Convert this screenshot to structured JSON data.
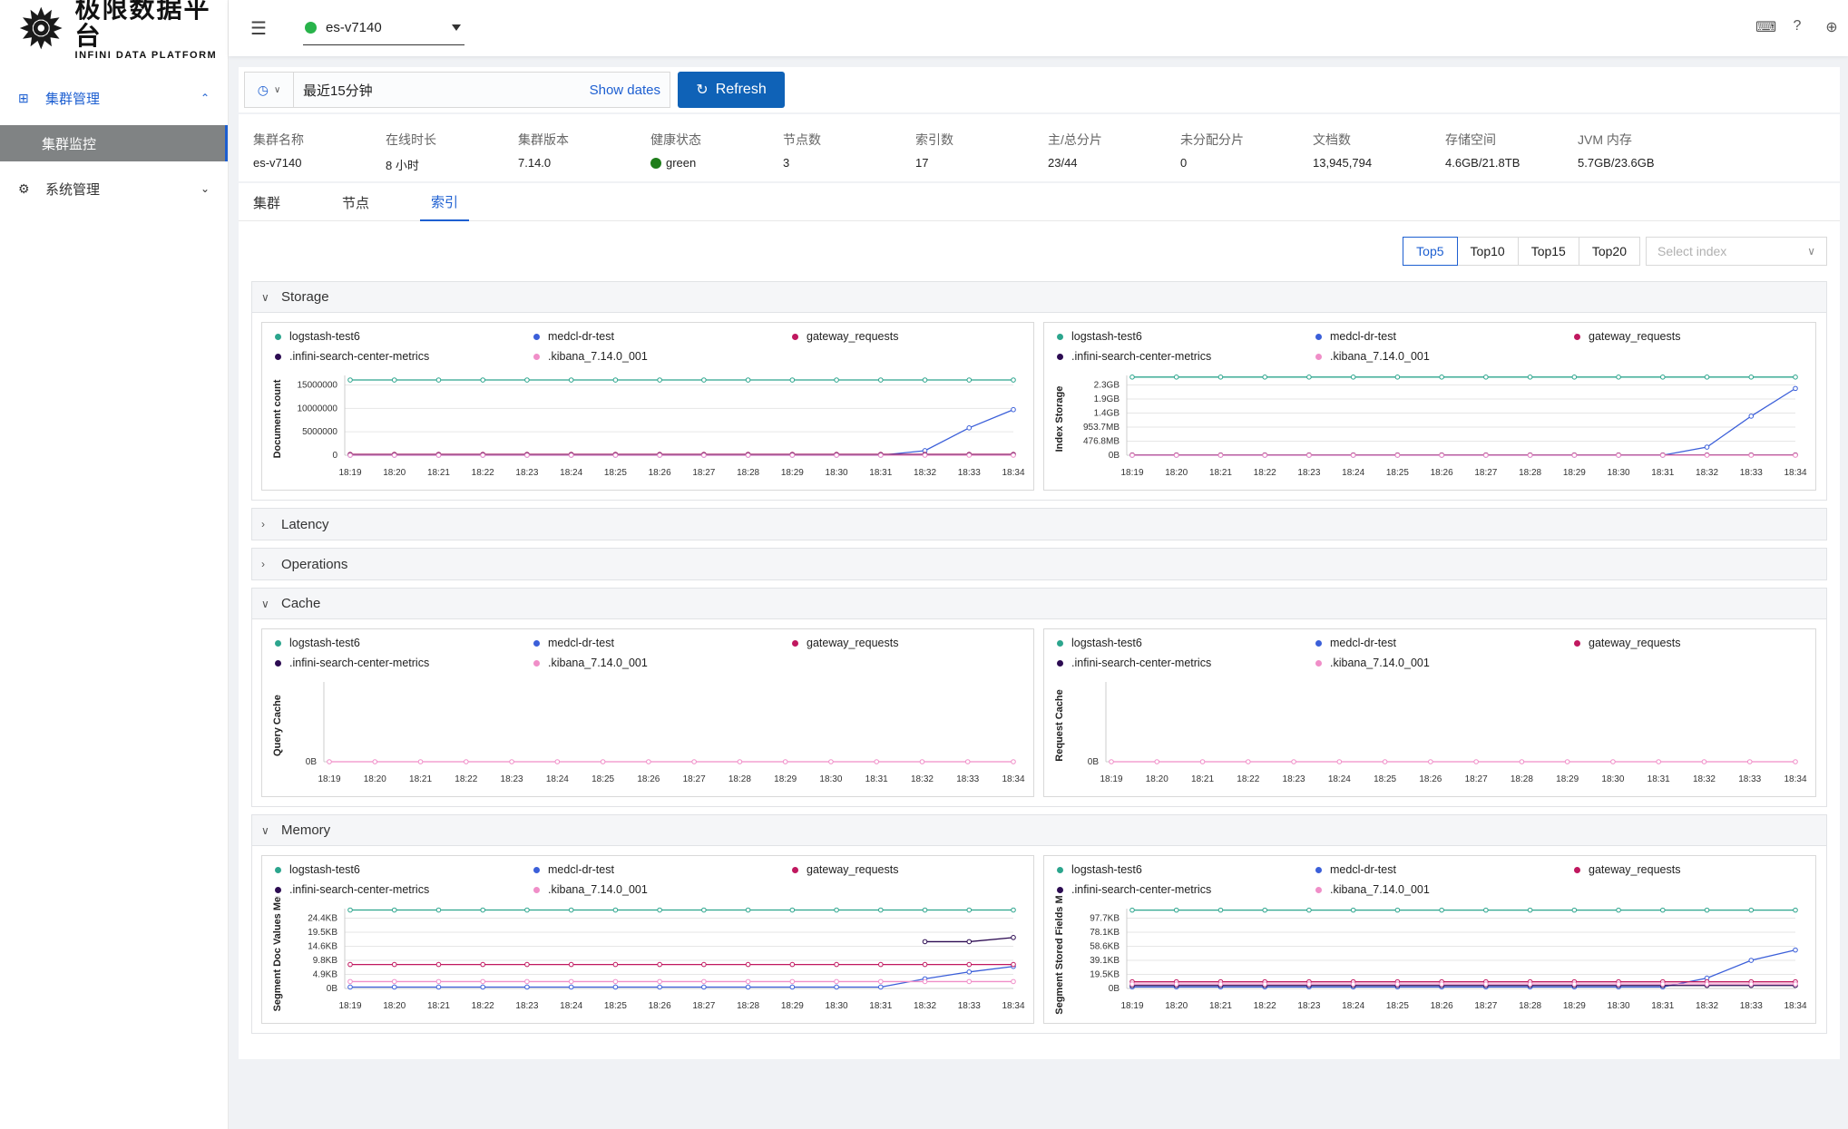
{
  "sidebar": {
    "logo_cn": "极限数据平台",
    "logo_en": "INFINI DATA PLATFORM",
    "groups": [
      {
        "label": "集群管理",
        "icon": "cluster-icon",
        "expanded": true,
        "children": [
          {
            "label": "集群监控",
            "active": true
          }
        ]
      },
      {
        "label": "系统管理",
        "icon": "gear-icon",
        "expanded": false
      }
    ]
  },
  "topbar": {
    "cluster_name": "es-v7140",
    "cluster_status_color": "#28b34a",
    "icons": [
      "console-icon",
      "help-icon",
      "globe-icon"
    ]
  },
  "filter": {
    "time_range": "最近15分钟",
    "show_dates": "Show dates",
    "refresh": "Refresh"
  },
  "summary": [
    {
      "label": "集群名称",
      "value": "es-v7140"
    },
    {
      "label": "在线时长",
      "value": "8 小时"
    },
    {
      "label": "集群版本",
      "value": "7.14.0"
    },
    {
      "label": "健康状态",
      "value": "green"
    },
    {
      "label": "节点数",
      "value": "3"
    },
    {
      "label": "索引数",
      "value": "17"
    },
    {
      "label": "主/总分片",
      "value": "23/44"
    },
    {
      "label": "未分配分片",
      "value": "0"
    },
    {
      "label": "文档数",
      "value": "13,945,794"
    },
    {
      "label": "存储空间",
      "value": "4.6GB/21.8TB"
    },
    {
      "label": "JVM 内存",
      "value": "5.7GB/23.6GB"
    }
  ],
  "tabs": [
    {
      "label": "集群",
      "active": false
    },
    {
      "label": "节点",
      "active": false
    },
    {
      "label": "索引",
      "active": true
    }
  ],
  "top_options": [
    {
      "label": "Top5",
      "active": true
    },
    {
      "label": "Top10",
      "active": false
    },
    {
      "label": "Top15",
      "active": false
    },
    {
      "label": "Top20",
      "active": false
    }
  ],
  "index_select_placeholder": "Select index",
  "legend": [
    {
      "name": "logstash-test6",
      "color": "#2ca58d"
    },
    {
      "name": "medcl-dr-test",
      "color": "#3b5fd9"
    },
    {
      "name": "gateway_requests",
      "color": "#c0185f"
    },
    {
      "name": ".infini-search-center-metrics",
      "color": "#2c0b52"
    },
    {
      "name": ".kibana_7.14.0_001",
      "color": "#f08ec8"
    }
  ],
  "time_labels": [
    "18:19",
    "18:20",
    "18:21",
    "18:22",
    "18:23",
    "18:24",
    "18:25",
    "18:26",
    "18:27",
    "18:28",
    "18:29",
    "18:30",
    "18:31",
    "18:32",
    "18:33",
    "18:34"
  ],
  "sections": [
    {
      "title": "Storage",
      "expanded": true,
      "charts": [
        {
          "ylabel": "Document count",
          "yticks": [
            "15000000",
            "10000000",
            "5000000",
            "0"
          ],
          "ymax": 17500000,
          "series": {
            "logstash-test6": [
              16500000,
              16500000,
              16500000,
              16500000,
              16500000,
              16500000,
              16500000,
              16500000,
              16500000,
              16500000,
              16500000,
              16500000,
              16500000,
              16500000,
              16500000,
              16500000
            ],
            "medcl-dr-test": [
              0,
              0,
              0,
              0,
              0,
              0,
              0,
              0,
              0,
              0,
              0,
              0,
              0,
              1000000,
              6000000,
              10000000
            ],
            "gateway_requests": [
              200000,
              200000,
              200000,
              200000,
              200000,
              200000,
              200000,
              200000,
              200000,
              200000,
              200000,
              200000,
              200000,
              200000,
              200000,
              200000
            ],
            ".infini-search-center-metrics": [
              100000,
              100000,
              100000,
              100000,
              100000,
              100000,
              100000,
              100000,
              100000,
              100000,
              100000,
              100000,
              100000,
              100000,
              100000,
              100000
            ],
            ".kibana_7.14.0_001": [
              0,
              0,
              0,
              0,
              0,
              0,
              0,
              0,
              0,
              0,
              0,
              0,
              0,
              0,
              0,
              0
            ]
          }
        },
        {
          "ylabel": "Index Storage",
          "yticks": [
            "2.3GB",
            "1.9GB",
            "1.4GB",
            "953.7MB",
            "476.8MB",
            "0B"
          ],
          "ymax": 2.45,
          "series": {
            "logstash-test6": [
              2.4,
              2.4,
              2.4,
              2.4,
              2.4,
              2.4,
              2.4,
              2.4,
              2.4,
              2.4,
              2.4,
              2.4,
              2.4,
              2.4,
              2.4,
              2.4
            ],
            "medcl-dr-test": [
              0,
              0,
              0,
              0,
              0,
              0,
              0,
              0,
              0,
              0,
              0,
              0,
              0,
              0.25,
              1.2,
              2.05
            ],
            "gateway_requests": [
              0.01,
              0.01,
              0.01,
              0.01,
              0.01,
              0.01,
              0.01,
              0.01,
              0.01,
              0.01,
              0.01,
              0.01,
              0.01,
              0.01,
              0.01,
              0.01
            ],
            ".infini-search-center-metrics": [
              0.005,
              0.005,
              0.005,
              0.005,
              0.005,
              0.005,
              0.005,
              0.005,
              0.005,
              0.005,
              0.005,
              0.005,
              0.005,
              0.005,
              0.005,
              0.005
            ],
            ".kibana_7.14.0_001": [
              0,
              0,
              0,
              0,
              0,
              0,
              0,
              0,
              0,
              0,
              0,
              0,
              0,
              0,
              0,
              0
            ]
          }
        }
      ]
    },
    {
      "title": "Latency",
      "expanded": false
    },
    {
      "title": "Operations",
      "expanded": false
    },
    {
      "title": "Cache",
      "expanded": true,
      "charts": [
        {
          "ylabel": "Query Cache",
          "yticks": [
            "0B"
          ],
          "ymax": 1,
          "series": {
            ".kibana_7.14.0_001": [
              0,
              0,
              0,
              0,
              0,
              0,
              0,
              0,
              0,
              0,
              0,
              0,
              0,
              0,
              0,
              0
            ]
          }
        },
        {
          "ylabel": "Request Cache",
          "yticks": [
            "0B"
          ],
          "ymax": 1,
          "series": {
            ".kibana_7.14.0_001": [
              0,
              0,
              0,
              0,
              0,
              0,
              0,
              0,
              0,
              0,
              0,
              0,
              0,
              0,
              0,
              0
            ]
          }
        }
      ]
    },
    {
      "title": "Memory",
      "expanded": true,
      "charts": [
        {
          "ylabel": "Segment Doc Values Mer",
          "yticks": [
            "24.4KB",
            "19.5KB",
            "14.6KB",
            "9.8KB",
            "4.9KB",
            "0B"
          ],
          "ymax": 29,
          "series": {
            "logstash-test6": [
              28.5,
              28.5,
              28.5,
              28.5,
              28.5,
              28.5,
              28.5,
              28.5,
              28.5,
              28.5,
              28.5,
              28.5,
              28.5,
              28.5,
              28.5,
              28.5
            ],
            "medcl-dr-test": [
              0.5,
              0.5,
              0.5,
              0.5,
              0.5,
              0.5,
              0.5,
              0.5,
              0.5,
              0.5,
              0.5,
              0.5,
              0.5,
              3.5,
              6,
              8
            ],
            "gateway_requests": [
              8.7,
              8.7,
              8.7,
              8.7,
              8.7,
              8.7,
              8.7,
              8.7,
              8.7,
              8.7,
              8.7,
              8.7,
              8.7,
              8.7,
              8.7,
              8.7
            ],
            ".infini-search-center-metrics": [
              null,
              null,
              null,
              null,
              null,
              null,
              null,
              null,
              null,
              null,
              null,
              null,
              null,
              17,
              17,
              18.5
            ],
            ".kibana_7.14.0_001": [
              2.5,
              2.5,
              2.5,
              2.5,
              2.5,
              2.5,
              2.5,
              2.5,
              2.5,
              2.5,
              2.5,
              2.5,
              2.5,
              2.5,
              2.5,
              2.5
            ]
          }
        },
        {
          "ylabel": "Segment Stored Fields Me",
          "yticks": [
            "97.7KB",
            "78.1KB",
            "58.6KB",
            "39.1KB",
            "19.5KB",
            "0B"
          ],
          "ymax": 108,
          "series": {
            "logstash-test6": [
              106,
              106,
              106,
              106,
              106,
              106,
              106,
              106,
              106,
              106,
              106,
              106,
              106,
              106,
              106,
              106
            ],
            "medcl-dr-test": [
              2,
              2,
              2,
              2,
              2,
              2,
              2,
              2,
              2,
              2,
              2,
              2,
              2,
              14,
              38,
              52
            ],
            "gateway_requests": [
              9,
              9,
              9,
              9,
              9,
              9,
              9,
              9,
              9,
              9,
              9,
              9,
              9,
              9,
              9,
              9
            ],
            ".infini-search-center-metrics": [
              4,
              4,
              4,
              4,
              4,
              4,
              4,
              4,
              4,
              4,
              4,
              4,
              4,
              4,
              4,
              4
            ],
            ".kibana_7.14.0_001": [
              6,
              6,
              6,
              6,
              6,
              6,
              6,
              6,
              6,
              6,
              6,
              6,
              6,
              6,
              6,
              6
            ]
          }
        }
      ]
    }
  ]
}
